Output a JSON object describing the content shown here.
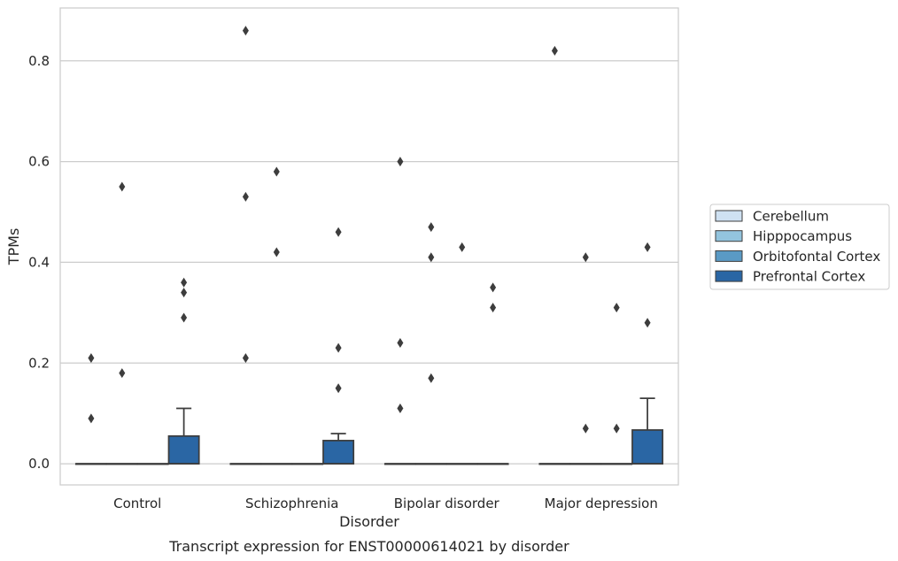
{
  "chart_data": {
    "type": "box",
    "title": "Transcript expression for ENST00000614021 by disorder",
    "xlabel": "Disorder",
    "ylabel": "TPMs",
    "ylim": [
      -0.042,
      0.905
    ],
    "yticks": [
      "0.0",
      "0.2",
      "0.4",
      "0.6",
      "0.8"
    ],
    "grid": true,
    "legend_position": "right",
    "categories": [
      "Control",
      "Schizophrenia",
      "Bipolar disorder",
      "Major depression"
    ],
    "series": [
      {
        "name": "Cerebellum",
        "color": "#cfe1f2",
        "boxes": [
          {
            "q1": 0,
            "median": 0,
            "q3": 0,
            "whisker_high": 0,
            "outliers": [
              0.09,
              0.21
            ]
          },
          {
            "q1": 0,
            "median": 0,
            "q3": 0,
            "whisker_high": 0,
            "outliers": [
              0.21,
              0.53,
              0.86
            ]
          },
          {
            "q1": 0,
            "median": 0,
            "q3": 0,
            "whisker_high": 0,
            "outliers": [
              0.11,
              0.24,
              0.6
            ]
          },
          {
            "q1": 0,
            "median": 0,
            "q3": 0,
            "whisker_high": 0,
            "outliers": [
              0.82
            ]
          }
        ]
      },
      {
        "name": "Hipppocampus",
        "color": "#93c4de",
        "boxes": [
          {
            "q1": 0,
            "median": 0,
            "q3": 0,
            "whisker_high": 0,
            "outliers": [
              0.18,
              0.55
            ]
          },
          {
            "q1": 0,
            "median": 0,
            "q3": 0,
            "whisker_high": 0,
            "outliers": [
              0.42,
              0.58
            ]
          },
          {
            "q1": 0,
            "median": 0,
            "q3": 0,
            "whisker_high": 0,
            "outliers": [
              0.17,
              0.41,
              0.47
            ]
          },
          {
            "q1": 0,
            "median": 0,
            "q3": 0,
            "whisker_high": 0,
            "outliers": [
              0.07,
              0.41
            ]
          }
        ]
      },
      {
        "name": "Orbitofontal Cortex",
        "color": "#5a9ac5",
        "boxes": [
          {
            "q1": 0,
            "median": 0,
            "q3": 0,
            "whisker_high": 0,
            "outliers": []
          },
          {
            "q1": 0,
            "median": 0,
            "q3": 0,
            "whisker_high": 0,
            "outliers": []
          },
          {
            "q1": 0,
            "median": 0,
            "q3": 0,
            "whisker_high": 0,
            "outliers": [
              0.43
            ]
          },
          {
            "q1": 0,
            "median": 0,
            "q3": 0,
            "whisker_high": 0,
            "outliers": [
              0.07,
              0.31
            ]
          }
        ]
      },
      {
        "name": "Prefrontal Cortex",
        "color": "#2a66a4",
        "boxes": [
          {
            "q1": 0,
            "median": 0,
            "q3": 0.055,
            "whisker_high": 0.11,
            "outliers": [
              0.29,
              0.34,
              0.36
            ]
          },
          {
            "q1": 0,
            "median": 0,
            "q3": 0.046,
            "whisker_high": 0.06,
            "outliers": [
              0.15,
              0.23,
              0.46
            ]
          },
          {
            "q1": 0,
            "median": 0,
            "q3": 0,
            "whisker_high": 0,
            "outliers": [
              0.31,
              0.35
            ]
          },
          {
            "q1": 0,
            "median": 0,
            "q3": 0.067,
            "whisker_high": 0.13,
            "outliers": [
              0.28,
              0.43
            ]
          }
        ]
      }
    ]
  }
}
